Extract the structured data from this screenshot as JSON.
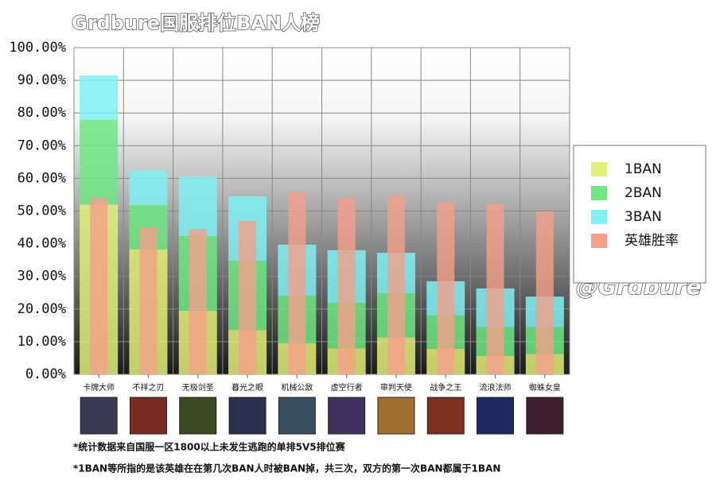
{
  "chart_data": {
    "type": "bar",
    "title": "Grdbure国服排位BAN人榜",
    "watermark": "@Grdbure",
    "notes": [
      "*统计数据来自国服一区1800以上未发生逃跑的单排5V5排位赛",
      "*1BAN等所指的是该英雄在在第几次BAN人时被BAN掉，共三次，双方的第一次BAN都属于1BAN"
    ],
    "categories": [
      "卡牌大师",
      "不祥之刃",
      "无极剑圣",
      "暮光之眼",
      "机械公敌",
      "虚空行者",
      "审判天使",
      "战争之王",
      "流浪法师",
      "蜘蛛女皇"
    ],
    "series": [
      {
        "name": "1BAN",
        "color": "#e2ef78",
        "stack": true,
        "values": [
          52,
          38.2,
          19.5,
          13.6,
          9.5,
          8,
          11.4,
          7.8,
          5.6,
          6.3
        ]
      },
      {
        "name": "2BAN",
        "color": "#6fe882",
        "stack": true,
        "values": [
          26,
          13.6,
          22.8,
          21.2,
          14.6,
          13.9,
          13.4,
          10.2,
          8.8,
          8.1
        ]
      },
      {
        "name": "3BAN",
        "color": "#80f0f2",
        "stack": true,
        "values": [
          13.5,
          10.7,
          18.3,
          19.7,
          15.6,
          16.1,
          12.4,
          10.5,
          11.9,
          9.4
        ]
      },
      {
        "name": "英雄胜率",
        "color": "#f4a08a",
        "stack": false,
        "values": [
          54,
          45,
          44.5,
          47,
          55.7,
          54,
          54.7,
          52.6,
          52,
          49.9
        ]
      }
    ],
    "ylim": [
      0,
      100
    ],
    "yticks": [
      {
        "value": 0,
        "label": "0.00%"
      },
      {
        "value": 10,
        "label": "10.00%"
      },
      {
        "value": 20,
        "label": "20.00%"
      },
      {
        "value": 30,
        "label": "30.00%"
      },
      {
        "value": 40,
        "label": "40.00%"
      },
      {
        "value": 50,
        "label": "50.00%"
      },
      {
        "value": 60,
        "label": "60.00%"
      },
      {
        "value": 70,
        "label": "70.00%"
      },
      {
        "value": 80,
        "label": "80.00%"
      },
      {
        "value": 90,
        "label": "90.00%"
      },
      {
        "value": 100,
        "label": "100.00%"
      }
    ],
    "grid": true,
    "legend": "right"
  }
}
